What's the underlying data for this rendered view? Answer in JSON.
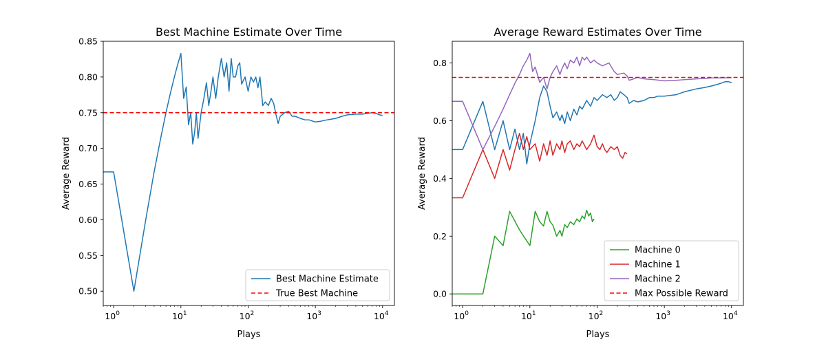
{
  "colors": {
    "blue": "#1f77b4",
    "green": "#2ca02c",
    "red": "#d62728",
    "purple": "#9467bd",
    "dashed_red": "#ff0000"
  },
  "chart_data": [
    {
      "type": "line",
      "title": "Best Machine Estimate Over Time",
      "xlabel": "Plays",
      "ylabel": "Average Reward",
      "xscale": "log",
      "xlim": [
        0.7,
        15000
      ],
      "ylim": [
        0.48,
        0.85
      ],
      "xticks": [
        1,
        10,
        100,
        1000,
        10000
      ],
      "xtick_labels": [
        {
          "base": "10",
          "exp": "0"
        },
        {
          "base": "10",
          "exp": "1"
        },
        {
          "base": "10",
          "exp": "2"
        },
        {
          "base": "10",
          "exp": "3"
        },
        {
          "base": "10",
          "exp": "4"
        }
      ],
      "yticks": [
        0.5,
        0.55,
        0.6,
        0.65,
        0.7,
        0.75,
        0.8,
        0.85
      ],
      "ytick_labels": [
        "0.50",
        "0.55",
        "0.60",
        "0.65",
        "0.70",
        "0.75",
        "0.80",
        "0.85"
      ],
      "grid": false,
      "legend_position": "lower-right",
      "series": [
        {
          "name": "Best Machine Estimate",
          "color": "blue",
          "x": [
            0.7,
            1,
            2,
            3,
            4,
            5,
            6,
            7,
            8,
            9,
            10,
            11,
            12,
            13,
            14,
            15,
            16,
            17,
            18,
            20,
            22,
            24,
            26,
            28,
            30,
            33,
            36,
            40,
            44,
            48,
            52,
            56,
            60,
            65,
            70,
            75,
            80,
            90,
            100,
            110,
            120,
            130,
            140,
            150,
            165,
            180,
            200,
            220,
            240,
            260,
            280,
            300,
            350,
            400,
            450,
            500,
            600,
            700,
            800,
            1000,
            1200,
            1500,
            2000,
            2500,
            3000,
            4000,
            5000,
            6000,
            7000,
            8000,
            9000,
            10000
          ],
          "y": [
            0.667,
            0.667,
            0.5,
            0.6,
            0.667,
            0.714,
            0.75,
            0.778,
            0.8,
            0.818,
            0.833,
            0.77,
            0.786,
            0.733,
            0.75,
            0.706,
            0.722,
            0.75,
            0.714,
            0.75,
            0.77,
            0.792,
            0.76,
            0.78,
            0.8,
            0.77,
            0.8,
            0.826,
            0.8,
            0.82,
            0.78,
            0.826,
            0.8,
            0.8,
            0.815,
            0.82,
            0.79,
            0.8,
            0.78,
            0.8,
            0.793,
            0.8,
            0.785,
            0.8,
            0.76,
            0.765,
            0.76,
            0.77,
            0.763,
            0.747,
            0.735,
            0.745,
            0.75,
            0.752,
            0.745,
            0.745,
            0.742,
            0.74,
            0.74,
            0.737,
            0.738,
            0.74,
            0.742,
            0.745,
            0.747,
            0.748,
            0.748,
            0.749,
            0.75,
            0.749,
            0.747,
            0.746
          ],
          "style": "solid"
        },
        {
          "name": "True Best Machine",
          "color": "dashed_red",
          "x": [
            0.7,
            15000
          ],
          "y": [
            0.75,
            0.75
          ],
          "style": "dashed"
        }
      ]
    },
    {
      "type": "line",
      "title": "Average Reward Estimates Over Time",
      "xlabel": "Plays",
      "ylabel": "Average Reward",
      "xscale": "log",
      "xlim": [
        0.7,
        15000
      ],
      "ylim": [
        -0.04,
        0.875
      ],
      "xticks": [
        1,
        10,
        100,
        1000,
        10000
      ],
      "xtick_labels": [
        {
          "base": "10",
          "exp": "0"
        },
        {
          "base": "10",
          "exp": "1"
        },
        {
          "base": "10",
          "exp": "2"
        },
        {
          "base": "10",
          "exp": "3"
        },
        {
          "base": "10",
          "exp": "4"
        }
      ],
      "yticks": [
        0.0,
        0.2,
        0.4,
        0.6,
        0.8
      ],
      "ytick_labels": [
        "0.0",
        "0.2",
        "0.4",
        "0.6",
        "0.8"
      ],
      "grid": false,
      "legend_position": "lower-right",
      "series": [
        {
          "name": "",
          "color": "blue",
          "x": [
            0.7,
            1,
            2,
            3,
            4,
            5,
            6,
            7,
            8,
            9,
            10,
            12,
            14,
            16,
            18,
            20,
            22,
            25,
            28,
            30,
            33,
            36,
            40,
            45,
            50,
            55,
            60,
            70,
            80,
            90,
            100,
            120,
            140,
            160,
            180,
            200,
            220,
            250,
            280,
            300,
            350,
            400,
            500,
            600,
            700,
            800,
            1000,
            1500,
            2000,
            3000,
            4000,
            5000,
            6000,
            7000,
            8000,
            9000,
            10000
          ],
          "y": [
            0.5,
            0.5,
            0.667,
            0.5,
            0.6,
            0.5,
            0.571,
            0.5,
            0.556,
            0.45,
            0.52,
            0.6,
            0.68,
            0.72,
            0.7,
            0.65,
            0.61,
            0.63,
            0.6,
            0.62,
            0.59,
            0.63,
            0.6,
            0.64,
            0.62,
            0.65,
            0.64,
            0.67,
            0.65,
            0.68,
            0.67,
            0.69,
            0.68,
            0.69,
            0.67,
            0.68,
            0.7,
            0.69,
            0.68,
            0.66,
            0.67,
            0.665,
            0.67,
            0.68,
            0.68,
            0.685,
            0.685,
            0.69,
            0.7,
            0.71,
            0.715,
            0.72,
            0.725,
            0.73,
            0.735,
            0.735,
            0.732
          ],
          "style": "solid"
        },
        {
          "name": "Machine 0",
          "color": "green",
          "x": [
            0.7,
            1,
            2,
            3,
            4,
            5,
            7,
            10,
            12,
            14,
            16,
            18,
            20,
            22,
            25,
            28,
            30,
            33,
            36,
            40,
            45,
            50,
            55,
            60,
            65,
            70,
            75,
            80,
            85,
            90
          ],
          "y": [
            0.0,
            0.0,
            0.0,
            0.2,
            0.167,
            0.286,
            0.222,
            0.167,
            0.286,
            0.25,
            0.235,
            0.286,
            0.25,
            0.238,
            0.2,
            0.22,
            0.2,
            0.24,
            0.23,
            0.25,
            0.24,
            0.26,
            0.25,
            0.27,
            0.26,
            0.29,
            0.27,
            0.28,
            0.25,
            0.26
          ],
          "style": "solid"
        },
        {
          "name": "Machine 1",
          "color": "red",
          "x": [
            0.7,
            1,
            2,
            3,
            4,
            5,
            6,
            7,
            8,
            9,
            10,
            12,
            14,
            16,
            18,
            20,
            22,
            25,
            28,
            30,
            33,
            36,
            40,
            45,
            50,
            55,
            60,
            70,
            80,
            90,
            100,
            110,
            120,
            130,
            140,
            160,
            180,
            200,
            220,
            240,
            260,
            280
          ],
          "y": [
            0.333,
            0.333,
            0.5,
            0.4,
            0.5,
            0.429,
            0.5,
            0.556,
            0.5,
            0.545,
            0.5,
            0.52,
            0.46,
            0.52,
            0.48,
            0.53,
            0.48,
            0.52,
            0.5,
            0.53,
            0.49,
            0.52,
            0.53,
            0.5,
            0.52,
            0.51,
            0.53,
            0.5,
            0.52,
            0.55,
            0.51,
            0.5,
            0.52,
            0.5,
            0.49,
            0.51,
            0.5,
            0.51,
            0.48,
            0.47,
            0.49,
            0.485
          ],
          "style": "solid"
        },
        {
          "name": "Machine 2",
          "color": "purple",
          "x": [
            0.7,
            1,
            2,
            3,
            4,
            5,
            6,
            7,
            8,
            9,
            10,
            11,
            12,
            14,
            16,
            18,
            20,
            22,
            25,
            28,
            30,
            33,
            36,
            40,
            45,
            50,
            55,
            60,
            65,
            70,
            80,
            90,
            100,
            120,
            150,
            180,
            200,
            250,
            280,
            300,
            350,
            400,
            500,
            700,
            1000,
            1500,
            2000,
            3000,
            4000,
            5000,
            7000,
            10000
          ],
          "y": [
            0.667,
            0.667,
            0.5,
            0.58,
            0.64,
            0.69,
            0.73,
            0.76,
            0.79,
            0.81,
            0.833,
            0.77,
            0.786,
            0.733,
            0.75,
            0.71,
            0.75,
            0.77,
            0.79,
            0.76,
            0.78,
            0.8,
            0.78,
            0.81,
            0.8,
            0.82,
            0.79,
            0.82,
            0.81,
            0.82,
            0.8,
            0.81,
            0.8,
            0.79,
            0.8,
            0.77,
            0.76,
            0.765,
            0.755,
            0.74,
            0.745,
            0.75,
            0.745,
            0.742,
            0.738,
            0.74,
            0.742,
            0.745,
            0.746,
            0.748,
            0.748,
            0.749
          ],
          "style": "solid"
        },
        {
          "name": "Max Possible Reward",
          "color": "dashed_red",
          "x": [
            0.7,
            15000
          ],
          "y": [
            0.75,
            0.75
          ],
          "style": "dashed"
        }
      ]
    }
  ]
}
